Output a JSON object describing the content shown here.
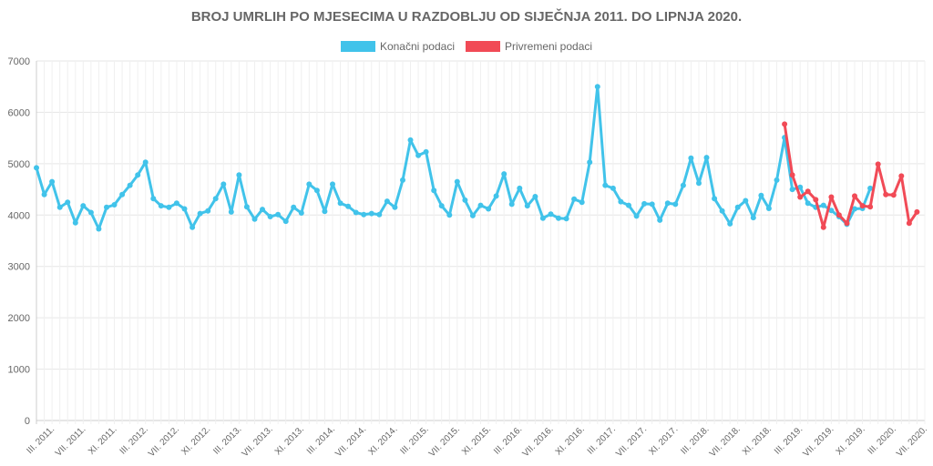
{
  "chart_data": {
    "type": "line",
    "title": "BROJ UMRLIH PO MJESECIMA U RAZDOBLJU OD SIJEČNJA 2011. DO LIPNJA 2020.",
    "ylim": [
      0,
      7000
    ],
    "y_ticks": [
      "0",
      "1000",
      "2000",
      "3000",
      "4000",
      "5000",
      "6000",
      "7000"
    ],
    "x_ticks": [
      {
        "i": 2,
        "label": "III. 2011."
      },
      {
        "i": 6,
        "label": "VII. 2011."
      },
      {
        "i": 10,
        "label": "XI. 2011."
      },
      {
        "i": 14,
        "label": "III. 2012."
      },
      {
        "i": 18,
        "label": "VII. 2012."
      },
      {
        "i": 22,
        "label": "XI. 2012."
      },
      {
        "i": 26,
        "label": "III. 2013."
      },
      {
        "i": 30,
        "label": "VII. 2013."
      },
      {
        "i": 34,
        "label": "XI. 2013."
      },
      {
        "i": 38,
        "label": "III. 2014."
      },
      {
        "i": 42,
        "label": "VII. 2014."
      },
      {
        "i": 46,
        "label": "XI. 2014."
      },
      {
        "i": 50,
        "label": "III. 2015."
      },
      {
        "i": 54,
        "label": "VII. 2015."
      },
      {
        "i": 58,
        "label": "XI. 2015."
      },
      {
        "i": 62,
        "label": "III. 2016."
      },
      {
        "i": 66,
        "label": "VII. 2016."
      },
      {
        "i": 70,
        "label": "XI. 2016."
      },
      {
        "i": 74,
        "label": "III. 2017."
      },
      {
        "i": 78,
        "label": "VII. 2017."
      },
      {
        "i": 82,
        "label": "XI. 2017."
      },
      {
        "i": 86,
        "label": "III. 2018."
      },
      {
        "i": 90,
        "label": "VII. 2018."
      },
      {
        "i": 94,
        "label": "XI. 2018."
      },
      {
        "i": 98,
        "label": "III. 2019."
      },
      {
        "i": 102,
        "label": "VII. 2019."
      },
      {
        "i": 106,
        "label": "XI. 2019."
      },
      {
        "i": 110,
        "label": "III. 2020."
      },
      {
        "i": 114,
        "label": "VII. 2020."
      }
    ],
    "grid": true,
    "legend_position": "top-center",
    "series": [
      {
        "name": "Konačni podaci",
        "color": "#41c3ea",
        "values": [
          4920,
          4400,
          4650,
          4150,
          4250,
          3850,
          4180,
          4050,
          3730,
          4150,
          4200,
          4400,
          4580,
          4780,
          5030,
          4320,
          4180,
          4150,
          4230,
          4120,
          3760,
          4030,
          4080,
          4320,
          4600,
          4060,
          4780,
          4160,
          3920,
          4110,
          3970,
          4010,
          3880,
          4150,
          4040,
          4600,
          4480,
          4070,
          4600,
          4230,
          4170,
          4050,
          4010,
          4030,
          4010,
          4270,
          4150,
          4680,
          5460,
          5160,
          5230,
          4480,
          4180,
          4000,
          4650,
          4290,
          3990,
          4190,
          4120,
          4370,
          4800,
          4210,
          4520,
          4180,
          4360,
          3940,
          4020,
          3940,
          3930,
          4310,
          4250,
          5030,
          6500,
          4580,
          4520,
          4260,
          4190,
          3980,
          4220,
          4210,
          3900,
          4230,
          4210,
          4580,
          5110,
          4620,
          5120,
          4320,
          4080,
          3830,
          4150,
          4280,
          3950,
          4380,
          4130,
          4680,
          5510,
          4500,
          4540,
          4230,
          4150,
          4190,
          4090,
          3970,
          3820,
          4120,
          4130,
          4520
        ]
      },
      {
        "name": "Privremeni podaci",
        "color": "#f14a56",
        "start_index": 96,
        "values": [
          5770,
          4780,
          4350,
          4460,
          4300,
          3760,
          4350,
          4000,
          3840,
          4370,
          4180,
          4160,
          4990,
          4400,
          4390,
          4760,
          3840,
          4060
        ]
      }
    ]
  }
}
